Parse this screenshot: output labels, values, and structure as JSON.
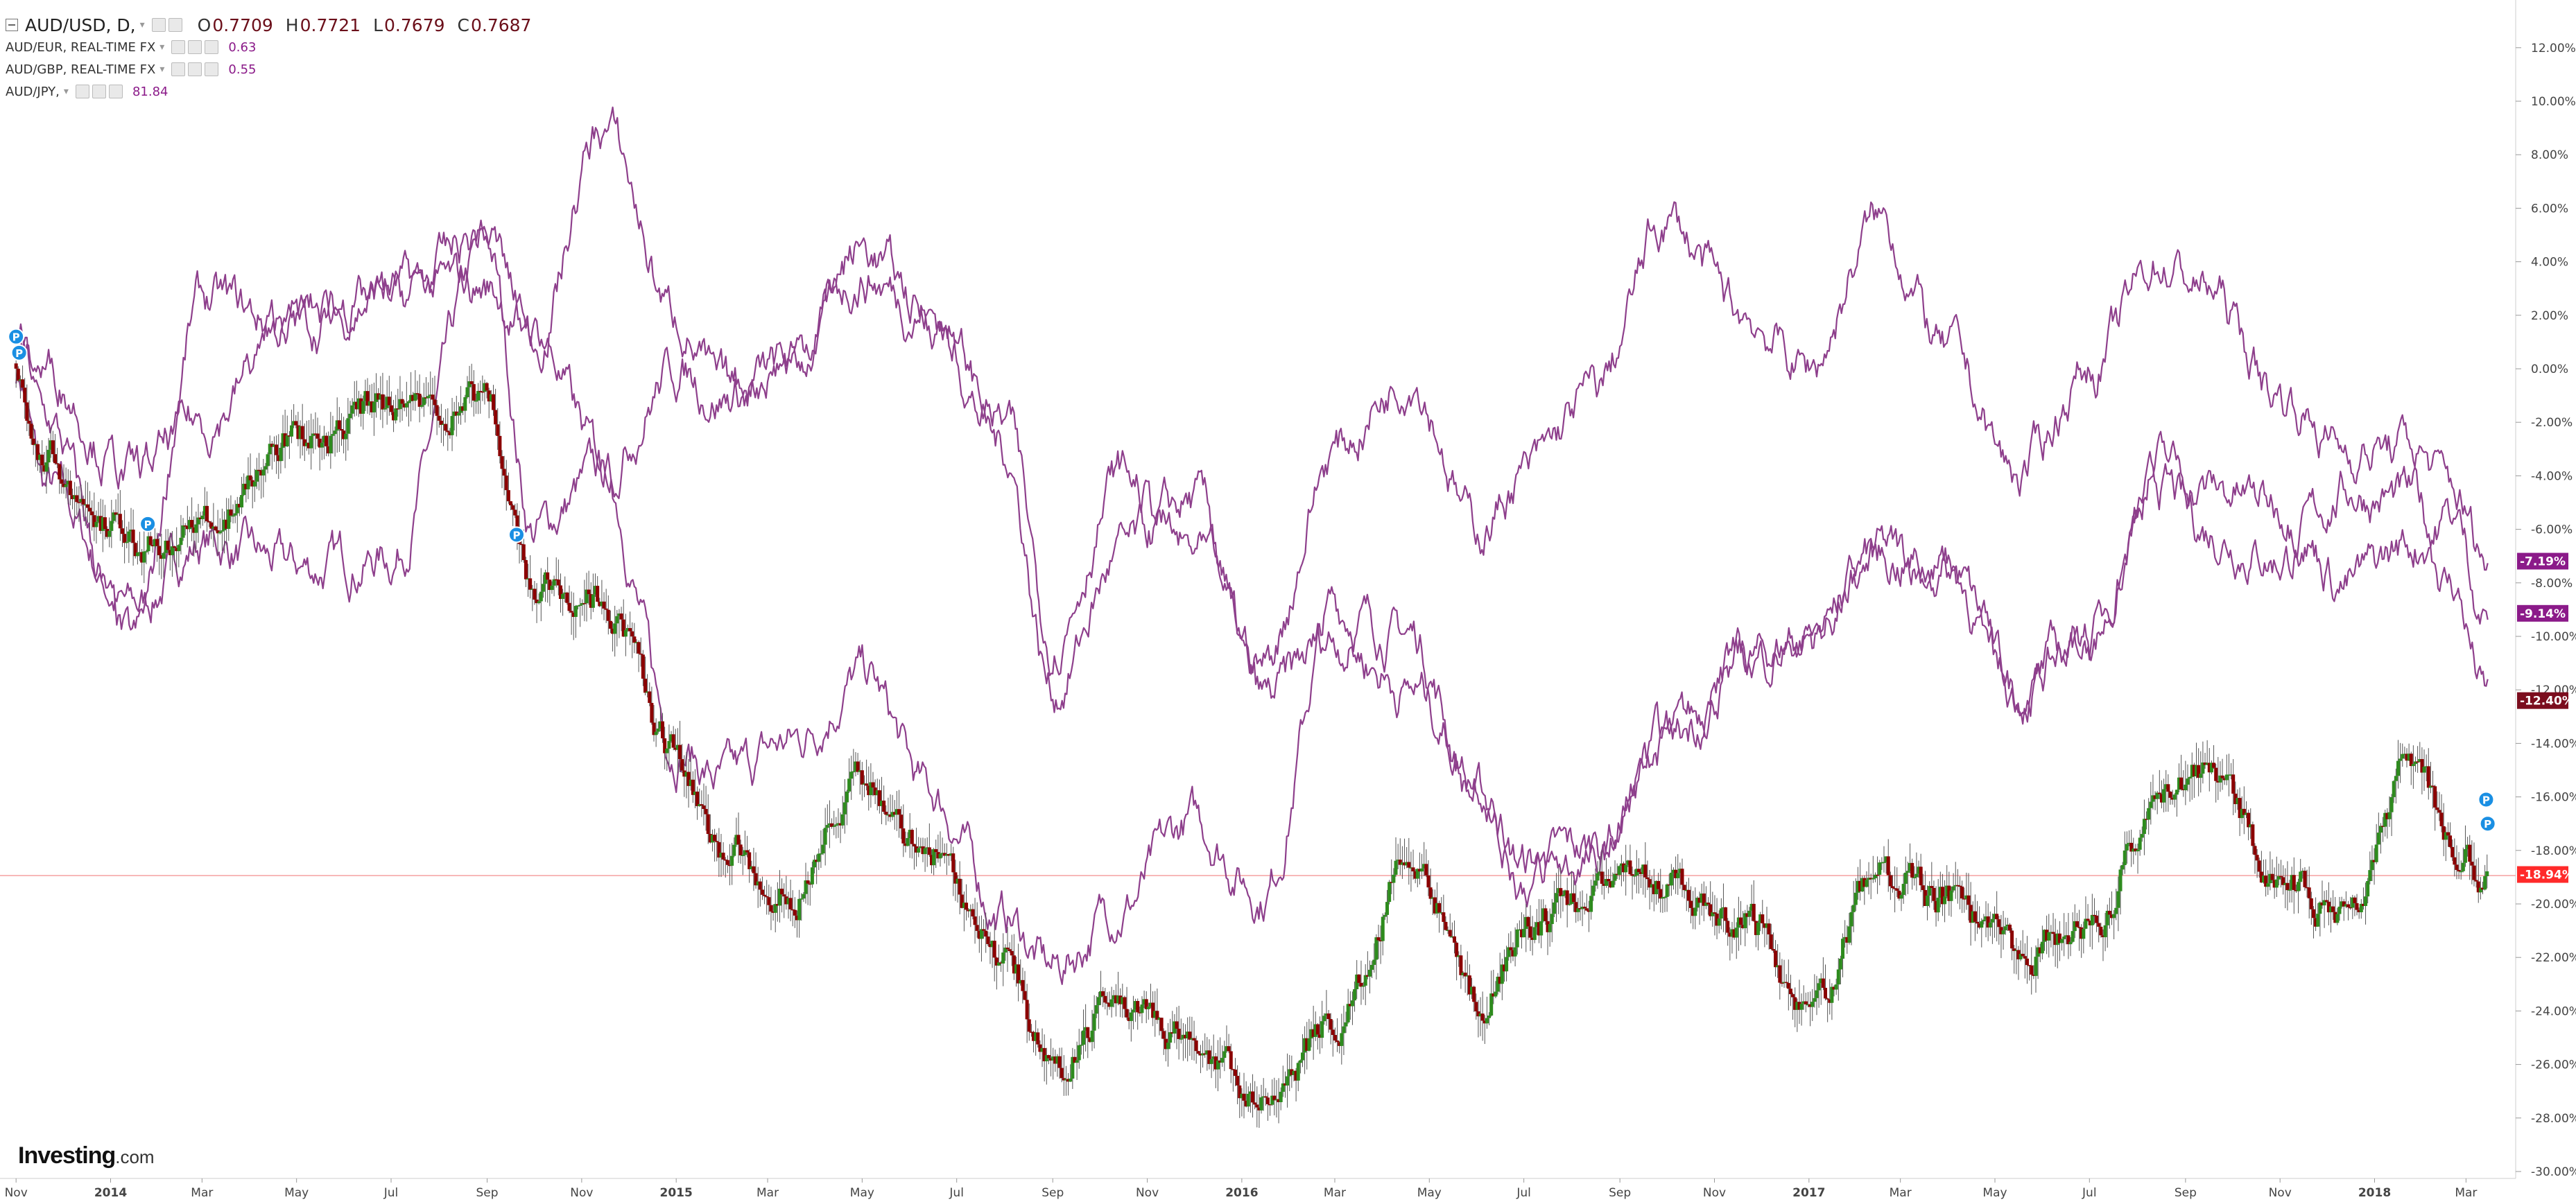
{
  "legend": {
    "main": {
      "symbol": "AUD/USD, D,",
      "o_label": "O",
      "o": "0.7709",
      "h_label": "H",
      "h": "0.7721",
      "l_label": "L",
      "l": "0.7679",
      "c_label": "C",
      "c": "0.7687"
    },
    "series": [
      {
        "label": "AUD/EUR, REAL-TIME FX",
        "value": "0.63",
        "color": "#8b1a89"
      },
      {
        "label": "AUD/GBP, REAL-TIME FX",
        "value": "0.55",
        "color": "#8b1a89"
      },
      {
        "label": "AUD/JPY,",
        "value": "81.84",
        "color": "#8b1a89"
      }
    ]
  },
  "logo": {
    "text": "Investing",
    "suffix": ".com"
  },
  "colors": {
    "up": "#2e8b1e",
    "down": "#8b0000",
    "line": "#8e3f8c",
    "last_price": "#ff2a2a",
    "grid_axis": "#cccccc"
  },
  "icons": {
    "marker": "p-marker-icon",
    "collapse": "collapse-icon"
  },
  "chart_data": {
    "type": "line",
    "x_unit": "date",
    "x_ticks": [
      "Nov",
      "2014",
      "Mar",
      "May",
      "Jul",
      "Sep",
      "Nov",
      "2015",
      "Mar",
      "May",
      "Jul",
      "Sep",
      "Nov",
      "2016",
      "Mar",
      "May",
      "Jul",
      "Sep",
      "Nov",
      "2017",
      "Mar",
      "May",
      "Jul",
      "Sep",
      "Nov",
      "2018",
      "Mar"
    ],
    "y_ticks": [
      "12.00%",
      "10.00%",
      "8.00%",
      "6.00%",
      "4.00%",
      "2.00%",
      "0.00%",
      "-2.00%",
      "-4.00%",
      "-6.00%",
      "-8.00%",
      "-10.00%",
      "-12.00%",
      "-14.00%",
      "-16.00%",
      "-18.00%",
      "-20.00%",
      "-22.00%",
      "-24.00%",
      "-26.00%",
      "-28.00%",
      "-30.00%"
    ],
    "ylim": [
      -30,
      12
    ],
    "grid": false,
    "x_dates": [
      "2013-11-01",
      "2013-11-20",
      "2014-01-15",
      "2014-03-01",
      "2014-05-01",
      "2014-07-01",
      "2014-09-01",
      "2014-10-01",
      "2014-11-15",
      "2015-01-01",
      "2015-02-01",
      "2015-03-15",
      "2015-05-01",
      "2015-06-15",
      "2015-08-01",
      "2015-09-01",
      "2015-10-15",
      "2015-12-01",
      "2016-01-15",
      "2016-03-01",
      "2016-04-20",
      "2016-06-01",
      "2016-07-01",
      "2016-08-15",
      "2016-10-01",
      "2016-11-20",
      "2017-01-01",
      "2017-02-15",
      "2017-04-01",
      "2017-05-15",
      "2017-07-01",
      "2017-08-15",
      "2017-09-15",
      "2017-11-01",
      "2017-12-15",
      "2018-01-26",
      "2018-02-20",
      "2018-03-15"
    ],
    "series": [
      {
        "type": "candlestick",
        "values": [
          0.2,
          -3.5,
          -6.5,
          -6.0,
          -2.5,
          -1.5,
          -1.5,
          -8.0,
          -8.5,
          -14.5,
          -18.0,
          -19.5,
          -15.5,
          -18.0,
          -22.0,
          -26.0,
          -23.5,
          -25.0,
          -27.5,
          -24.5,
          -18.0,
          -24.0,
          -21.0,
          -19.5,
          -19.0,
          -20.5,
          -24.0,
          -19.0,
          -20.0,
          -22.0,
          -21.0,
          -16.0,
          -15.0,
          -19.0,
          -20.5,
          -14.5,
          -17.5,
          -18.9
        ],
        "last_label": "-18.94%"
      },
      {
        "type": "line",
        "values": [
          0.0,
          -4.5,
          -9.0,
          -6.5,
          -7.5,
          -7.0,
          4.5,
          -6.0,
          -4.0,
          -14.0,
          -15.5,
          -14.0,
          -11.5,
          -16.0,
          -20.5,
          -22.5,
          -20.0,
          -17.0,
          -19.5,
          -9.0,
          -10.0,
          -16.0,
          -18.5,
          -18.0,
          -14.0,
          -11.0,
          -10.0,
          -7.0,
          -7.5,
          -12.0,
          -10.0,
          -4.5,
          -6.0,
          -7.0,
          -4.5,
          -5.0,
          -8.0,
          -12.4
        ],
        "last_label": "-12.40%"
      },
      {
        "type": "line",
        "values": [
          1.5,
          -2.0,
          -10.5,
          2.5,
          1.5,
          3.0,
          3.0,
          1.5,
          -3.5,
          0.0,
          -1.0,
          0.0,
          3.5,
          2.0,
          -3.0,
          -12.0,
          -7.0,
          -5.0,
          -12.5,
          -10.0,
          -12.0,
          -15.0,
          -19.0,
          -18.5,
          -14.0,
          -11.0,
          -10.0,
          -7.0,
          -7.5,
          -12.0,
          -10.0,
          -3.5,
          -4.5,
          -5.0,
          -8.0,
          -6.5,
          -5.5,
          -9.14
        ],
        "last_label": "-9.14%"
      },
      {
        "type": "line",
        "values": [
          0.5,
          0.0,
          -4.0,
          -2.0,
          2.0,
          2.5,
          5.0,
          1.0,
          9.0,
          2.0,
          -1.0,
          0.5,
          4.5,
          2.0,
          -2.0,
          -10.0,
          -4.0,
          -7.0,
          -11.0,
          -3.0,
          0.0,
          -6.0,
          -4.0,
          -1.0,
          5.5,
          2.0,
          0.0,
          5.5,
          0.5,
          -4.0,
          0.0,
          4.0,
          3.0,
          -1.0,
          -3.0,
          -3.0,
          -4.5,
          -7.19
        ],
        "last_label": "-7.19%"
      }
    ],
    "markers": [
      {
        "date": "2013-11-01",
        "value": 1.2,
        "label": "P"
      },
      {
        "date": "2013-11-03",
        "value": 0.6,
        "label": "P"
      },
      {
        "date": "2014-01-25",
        "value": -5.8,
        "label": "P"
      },
      {
        "date": "2014-09-20",
        "value": -6.2,
        "label": "P"
      },
      {
        "date": "2018-03-14",
        "value": -16.1,
        "label": "P"
      },
      {
        "date": "2018-03-15",
        "value": -17.0,
        "label": "P"
      }
    ],
    "current_line": -18.94
  }
}
